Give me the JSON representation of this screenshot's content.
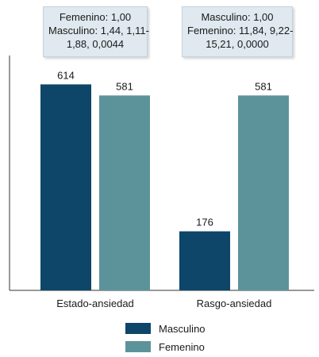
{
  "chart_data": {
    "type": "bar",
    "categories": [
      "Estado-ansiedad",
      "Rasgo-ansiedad"
    ],
    "series": [
      {
        "name": "Masculino",
        "color": "#0d4668",
        "values": [
          614,
          176
        ]
      },
      {
        "name": "Femenino",
        "color": "#5c939b",
        "values": [
          581,
          581
        ]
      }
    ],
    "data_labels": [
      [
        "614",
        "176"
      ],
      [
        "581",
        "581"
      ]
    ],
    "ylim": [
      0,
      700
    ],
    "grid": false,
    "legend_position": "bottom-center",
    "annotations": [
      {
        "lines": [
          "Femenino: 1,00",
          "Masculino: 1,44, 1,11-",
          "1,88, 0,0044"
        ]
      },
      {
        "lines": [
          "Masculino: 1,00",
          "Femenino: 11,84, 9,22-",
          "15,21, 0,0000"
        ]
      }
    ]
  }
}
